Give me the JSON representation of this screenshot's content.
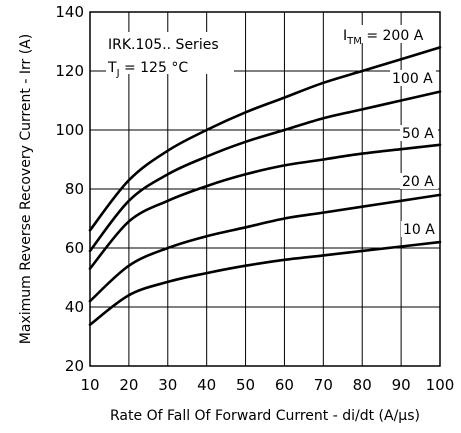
{
  "chart_data": {
    "type": "line",
    "xlabel": "Rate Of Fall Of Forward Current - di/dt (A/µs)",
    "ylabel": "Maximum Reverse Recovery Current - Irr (A)",
    "xlim": [
      10,
      100
    ],
    "ylim": [
      20,
      140
    ],
    "x_ticks": [
      10,
      20,
      30,
      40,
      50,
      60,
      70,
      80,
      90,
      100
    ],
    "y_ticks": [
      20,
      40,
      60,
      80,
      100,
      120,
      140
    ],
    "grid": true,
    "annotations": {
      "series_name": "IRK.105.. Series",
      "tj_prefix": "T",
      "tj_sub": "J",
      "tj_value": " = 125 °C",
      "itm_prefix": "I",
      "itm_sub": "TM"
    },
    "x": [
      10,
      20,
      30,
      40,
      50,
      60,
      70,
      80,
      90,
      100
    ],
    "series": [
      {
        "name": " = 200 A",
        "values": [
          66,
          83,
          93,
          100,
          106,
          111,
          116,
          120,
          124,
          128
        ]
      },
      {
        "name": "100 A",
        "values": [
          59,
          76,
          85,
          91,
          96,
          100,
          104,
          107,
          110,
          113
        ]
      },
      {
        "name": "50 A",
        "values": [
          53,
          69,
          76,
          81,
          85,
          88,
          90,
          92,
          93.5,
          95
        ]
      },
      {
        "name": "20 A",
        "values": [
          42,
          54,
          60,
          64,
          67,
          70,
          72,
          74,
          76,
          78
        ]
      },
      {
        "name": "10 A",
        "values": [
          34,
          44,
          48.5,
          51.5,
          54,
          56,
          57.5,
          59,
          60.5,
          62
        ]
      }
    ]
  }
}
